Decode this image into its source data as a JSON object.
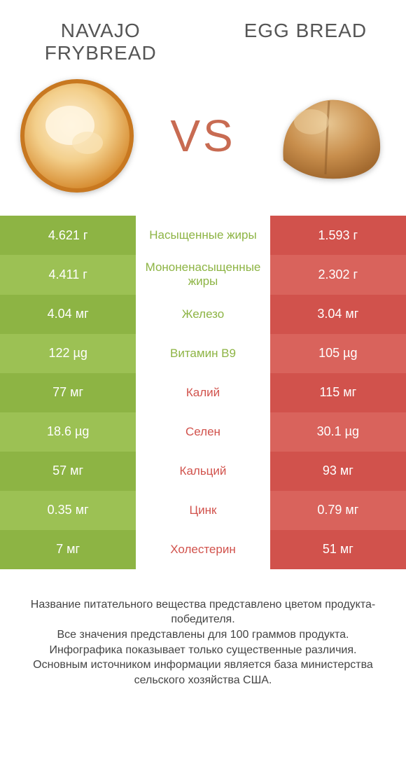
{
  "colors": {
    "green_dark": "#8db444",
    "green_light": "#9cc154",
    "red_dark": "#d1524c",
    "red_light": "#d9635c",
    "text_green": "#8db444",
    "text_red": "#d1524c",
    "vs_color": "#c86b52",
    "title_color": "#555555",
    "footer_color": "#444444",
    "bg": "#ffffff"
  },
  "header": {
    "left_title": "NAVAJO FRYBREAD",
    "right_title": "EGG BREAD",
    "vs": "VS"
  },
  "table": {
    "rows": [
      {
        "left": "4.621 г",
        "mid": "Насыщенные жиры",
        "right": "1.593 г",
        "winner": "left"
      },
      {
        "left": "4.411 г",
        "mid": "Мононенасыщенные жиры",
        "right": "2.302 г",
        "winner": "left"
      },
      {
        "left": "4.04 мг",
        "mid": "Железо",
        "right": "3.04 мг",
        "winner": "left"
      },
      {
        "left": "122 µg",
        "mid": "Витамин B9",
        "right": "105 µg",
        "winner": "left"
      },
      {
        "left": "77 мг",
        "mid": "Калий",
        "right": "115 мг",
        "winner": "right"
      },
      {
        "left": "18.6 µg",
        "mid": "Селен",
        "right": "30.1 µg",
        "winner": "right"
      },
      {
        "left": "57 мг",
        "mid": "Кальций",
        "right": "93 мг",
        "winner": "right"
      },
      {
        "left": "0.35 мг",
        "mid": "Цинк",
        "right": "0.79 мг",
        "winner": "right"
      },
      {
        "left": "7 мг",
        "mid": "Холестерин",
        "right": "51 мг",
        "winner": "right"
      }
    ]
  },
  "footer": {
    "line1": "Название питательного вещества представлено цветом продукта-победителя.",
    "line2": "Все значения представлены для 100 граммов продукта.",
    "line3": "Инфографика показывает только существенные различия.",
    "line4": "Основным источником информации является база министерства сельского хозяйства США."
  }
}
